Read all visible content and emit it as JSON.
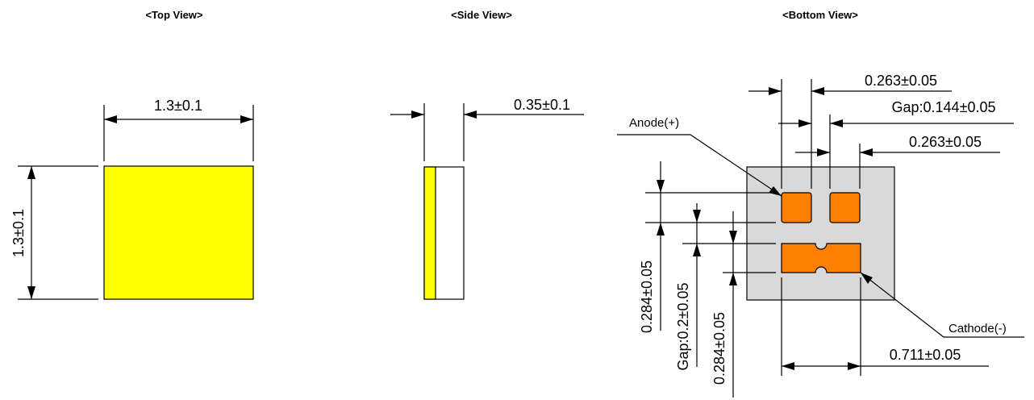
{
  "views": {
    "top": "<Top View>",
    "side": "<Side View>",
    "bottom": "<Bottom View>"
  },
  "top_view": {
    "width_dim": "1.3±0.1",
    "height_dim": "1.3±0.1"
  },
  "side_view": {
    "thickness_dim": "0.35±0.1"
  },
  "bottom_view": {
    "pad_width_dim": "0.263±0.05",
    "pad_gap_dim": "Gap:0.144±0.05",
    "pad_width_dim_2": "0.263±0.05",
    "anode_label": "Anode(+)",
    "cathode_label": "Cathode(-)",
    "cathode_width_dim": "0.711±0.05",
    "pad_height_dim": "0.284±0.05",
    "vertical_gap_dim": "Gap:0.2±0.05",
    "cathode_height_dim": "0.284±0.05"
  },
  "colors": {
    "chip_top": "#ffff00",
    "pad": "#ff8000",
    "body_bottom": "#d9d9d9"
  }
}
